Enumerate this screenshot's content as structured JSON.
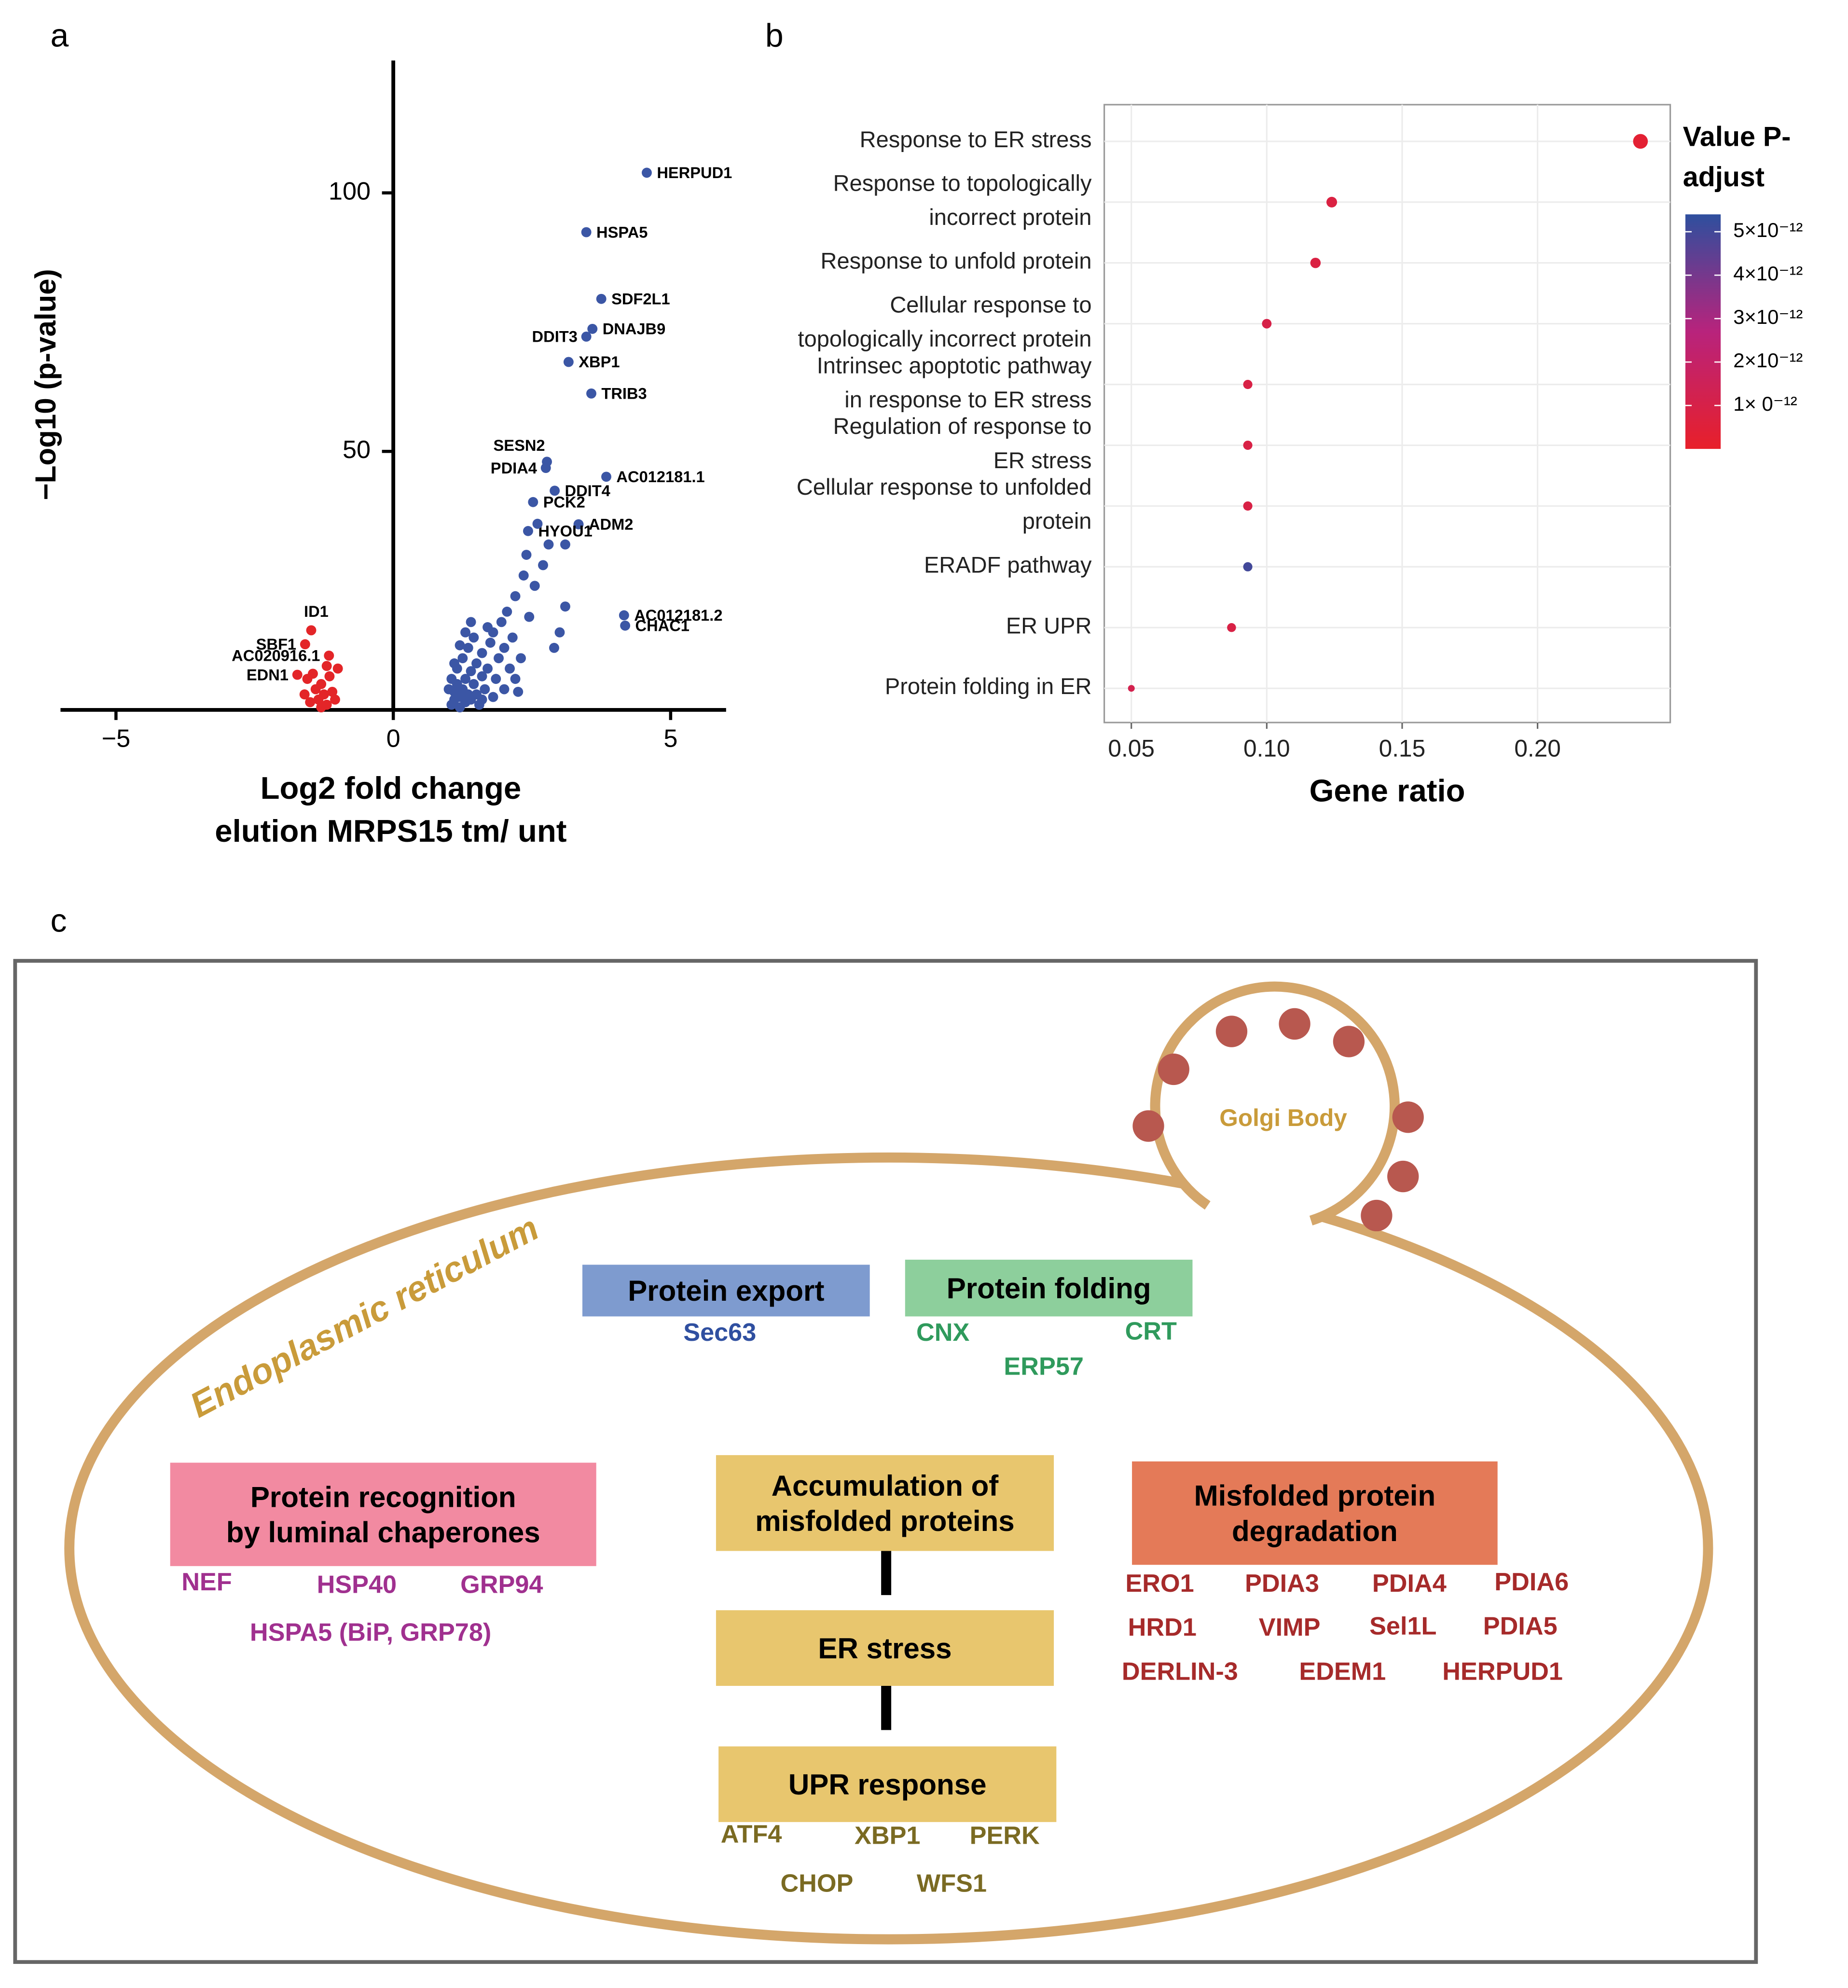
{
  "panels": [
    "a",
    "b",
    "c"
  ],
  "chart_data": [
    {
      "type": "scatter",
      "xlabel": "Log2 fold change\nelution MRPS15 tm/ unt",
      "ylabel": "−Log10 (p-value)",
      "xlim": [
        -6,
        6
      ],
      "ylim": [
        0,
        125.6
      ],
      "xticks": [
        {
          "value": -5,
          "label": "−5"
        },
        0,
        5
      ],
      "yticks": [
        50,
        100
      ],
      "series": [
        {
          "color": "#3b56a5",
          "x": [
            4.57,
            3.48,
            3.75,
            3.59,
            3.48,
            3.16,
            3.57,
            2.77,
            2.75,
            3.84,
            2.91,
            2.52,
            3.34,
            2.43,
            4.16,
            4.18,
            1.05,
            1.1,
            1.1,
            1.15,
            1.2,
            1.2,
            1.25,
            1.3,
            1.3,
            1.35,
            1.4,
            1.4,
            1.45,
            1.5,
            1.5,
            1.55,
            1.6,
            1.6,
            1.65,
            1.7,
            1.75,
            1.8,
            1.8,
            1.85,
            1.9,
            1.95,
            2.0,
            2.0,
            2.05,
            2.1,
            2.15,
            2.2,
            2.2,
            2.3,
            2.35,
            2.4,
            2.45,
            2.55,
            2.7,
            2.8,
            3.0,
            3.1,
            2.6,
            1.15,
            1.25,
            1.35,
            1.45,
            1.05,
            1.1,
            1.6,
            2.25,
            3.1,
            1.0,
            1.7,
            2.9,
            1.2,
            1.3,
            1.4
          ],
          "values": [
            103.9,
            92.4,
            79.5,
            73.7,
            72.2,
            67.3,
            61.2,
            48.0,
            46.8,
            45.1,
            42.4,
            40.2,
            35.9,
            34.6,
            18.3,
            16.3,
            1,
            2,
            3.5,
            5,
            0.5,
            2.5,
            4,
            6,
            1.5,
            3,
            7.5,
            2,
            5,
            9,
            3,
            1,
            6.5,
            11,
            4,
            8,
            13,
            2.5,
            15,
            6,
            10,
            17,
            4,
            12,
            19,
            8,
            14,
            6,
            22,
            10,
            26,
            30,
            18,
            24,
            28,
            32,
            15,
            20,
            36,
            8,
            10,
            12,
            14,
            6,
            9,
            2,
            3.5,
            32,
            4,
            16,
            12,
            12.5,
            15,
            17
          ],
          "labels": [
            "HERPUD1",
            "HSPA5",
            "SDF2L1",
            "DNAJB9",
            "DDIT3",
            "XBP1",
            "TRIB3",
            "SESN2",
            "PDIA4",
            "AC012181.1",
            "DDIT4",
            "PCK2",
            "ADM2",
            "HYOU1",
            "AC012181.2",
            "CHAC1",
            null,
            null,
            null,
            null,
            null,
            null,
            null,
            null,
            null,
            null,
            null,
            null,
            null,
            null,
            null,
            null,
            null,
            null,
            null,
            null,
            null,
            null,
            null,
            null,
            null,
            null,
            null,
            null,
            null,
            null,
            null,
            null,
            null,
            null,
            null,
            null,
            null,
            null,
            null,
            null,
            null,
            null,
            null,
            null,
            null,
            null,
            null,
            null,
            null,
            null,
            null,
            null,
            null,
            null,
            null,
            null,
            null,
            null
          ]
        },
        {
          "color": "#e32528",
          "x": [
            -1.48,
            -1.59,
            -1.16,
            -1.73,
            -1.2,
            -1.25,
            -1.3,
            -1.35,
            -1.4,
            -1.5,
            -1.55,
            -1.1,
            -1.15,
            -1.05,
            -1.6,
            -1.0,
            -1.2,
            -1.3,
            -1.45
          ],
          "values": [
            15.4,
            12.7,
            10.5,
            6.8,
            1,
            3,
            5,
            2,
            4,
            1.5,
            6,
            3.5,
            6.5,
            2,
            3,
            8,
            8.5,
            0.5,
            7
          ],
          "labels": [
            "ID1",
            "SBF1",
            "AC020916.1",
            "EDN1",
            null,
            null,
            null,
            null,
            null,
            null,
            null,
            null,
            null,
            null,
            null,
            null,
            null,
            null,
            null
          ]
        }
      ]
    },
    {
      "type": "dot",
      "xlabel": "Gene ratio",
      "categories": [
        "Response to ER stress",
        "Response to topologically\nincorrect protein",
        "Response to unfold protein",
        "Cellular response to\ntopologically incorrect protein",
        "Intrinsec apoptotic pathway\nin response to ER stress",
        "Regulation of response to\nER stress",
        "Cellular response to unfolded\nprotein",
        "ERADF pathway",
        "ER UPR",
        "Protein folding in ER"
      ],
      "values": [
        0.238,
        0.124,
        0.118,
        0.1,
        0.093,
        0.093,
        0.093,
        0.093,
        0.087,
        0.05
      ],
      "color_values": [
        3e-13,
        8e-13,
        8e-13,
        1e-12,
        9e-13,
        9e-13,
        9e-13,
        5e-12,
        9e-13,
        1.2e-12
      ],
      "xlim": [
        0.04,
        0.249
      ],
      "xticks": [
        0.05,
        {
          "value": 0.1,
          "label": "0.10"
        },
        0.15,
        {
          "value": 0.2,
          "label": "0.20"
        }
      ],
      "grid": true,
      "colorbar": {
        "title": "Value P-\nadjust",
        "lim": [
          0,
          5.4e-12
        ],
        "ticks": [
          {
            "value": 5e-12,
            "label": "5×10⁻¹²"
          },
          {
            "value": 4e-12,
            "label": "4×10⁻¹²"
          },
          {
            "value": 3e-12,
            "label": "3×10⁻¹²"
          },
          {
            "value": 2e-12,
            "label": "2×10⁻¹²"
          },
          {
            "value": 1e-12,
            "label": "1× 0⁻¹²"
          }
        ],
        "colors": [
          "#e8202a",
          "#b8237c",
          "#2e4f9e"
        ]
      }
    }
  ],
  "diagram": {
    "label": "Endoplasmic reticulum",
    "golgi": "Golgi Body",
    "boxes": [
      {
        "title": "Protein export",
        "items": [
          "Sec63"
        ]
      },
      {
        "title": "Protein folding",
        "items": [
          "CNX",
          "CRT",
          "ERP57"
        ]
      },
      {
        "title": "Protein recognition\nby luminal chaperones",
        "items": [
          "NEF",
          "HSP40",
          "GRP94",
          "HSPA5 (BiP, GRP78)"
        ]
      },
      {
        "title": "Accumulation of\nmisfolded proteins",
        "items": []
      },
      {
        "title": "ER stress",
        "items": []
      },
      {
        "title": "UPR response",
        "items": [
          "ATF4",
          "XBP1",
          "PERK",
          "CHOP",
          "WFS1"
        ]
      },
      {
        "title": "Misfolded protein\ndegradation",
        "items": [
          "ERO1",
          "PDIA3",
          "PDIA4",
          "PDIA6",
          "HRD1",
          "VIMP",
          "Sel1L",
          "PDIA5",
          "DERLIN-3",
          "EDEM1",
          "HERPUD1"
        ]
      }
    ]
  }
}
